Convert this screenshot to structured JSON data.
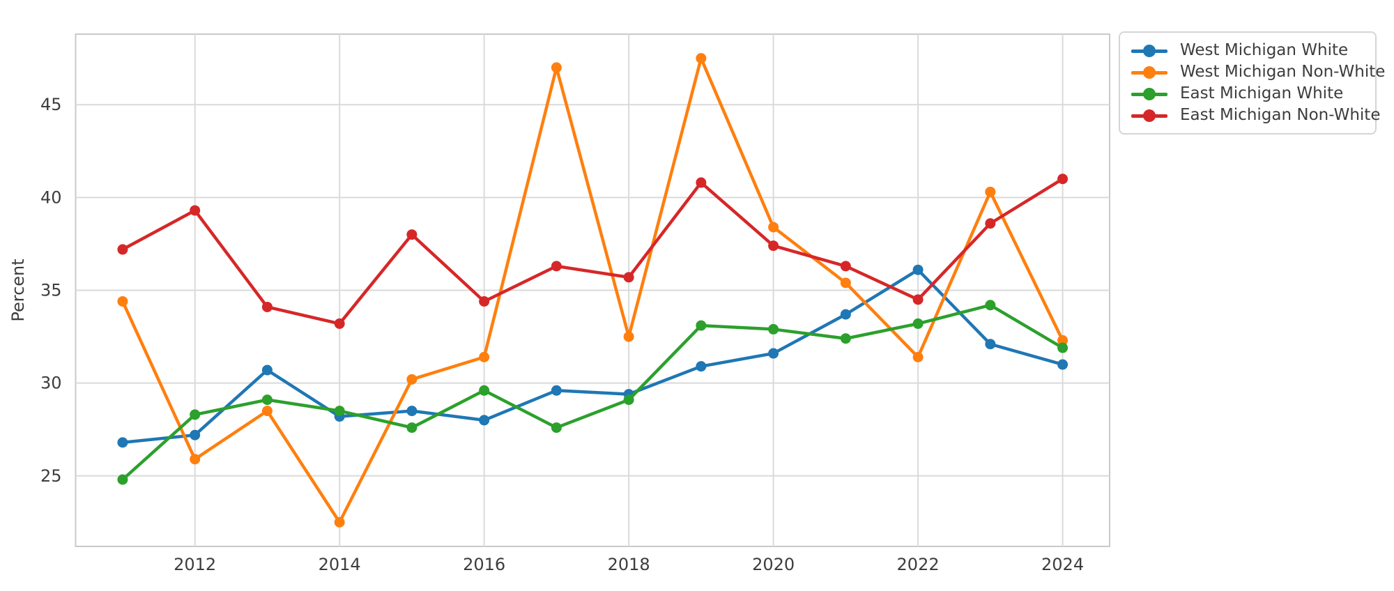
{
  "figure": {
    "background": "#ffffff",
    "plot_background": "#ffffff",
    "grid_color": "#dadada",
    "spine_color": "#c9c9c9",
    "tick_label_color": "#3d3d3d",
    "axis_label_color": "#3d3d3d",
    "tick_fontsize": 24,
    "axis_label_fontsize": 24
  },
  "chart_data": {
    "type": "line",
    "title": "",
    "xlabel": "",
    "ylabel": "Percent",
    "x": [
      2011,
      2012,
      2013,
      2014,
      2015,
      2016,
      2017,
      2018,
      2019,
      2020,
      2021,
      2022,
      2023,
      2024
    ],
    "series": [
      {
        "name": "West Michigan White",
        "color": "#1f77b4",
        "values": [
          26.8,
          27.2,
          30.7,
          28.2,
          28.5,
          28.0,
          29.6,
          29.4,
          30.9,
          31.6,
          33.7,
          36.1,
          32.1,
          31.0
        ]
      },
      {
        "name": "West Michigan Non-White",
        "color": "#ff7f0e",
        "values": [
          34.4,
          25.9,
          28.5,
          22.5,
          30.2,
          31.4,
          47.0,
          32.5,
          47.5,
          38.4,
          35.4,
          31.4,
          40.3,
          32.3
        ]
      },
      {
        "name": "East Michigan White",
        "color": "#2ca02c",
        "values": [
          24.8,
          28.3,
          29.1,
          28.5,
          27.6,
          29.6,
          27.6,
          29.1,
          33.1,
          32.9,
          32.4,
          33.2,
          34.2,
          31.9
        ]
      },
      {
        "name": "East Michigan Non-White",
        "color": "#d62728",
        "values": [
          37.2,
          39.3,
          34.1,
          33.2,
          38.0,
          34.4,
          36.3,
          35.7,
          40.8,
          37.4,
          36.3,
          34.5,
          38.6,
          41.0
        ]
      }
    ],
    "xticks": [
      2012,
      2014,
      2016,
      2018,
      2020,
      2022,
      2024
    ],
    "yticks": [
      25,
      30,
      35,
      40,
      45
    ],
    "xlim": [
      2010.35,
      2024.65
    ],
    "ylim": [
      21.2,
      48.8
    ],
    "grid": true,
    "legend_position": "upper-right-outside"
  }
}
